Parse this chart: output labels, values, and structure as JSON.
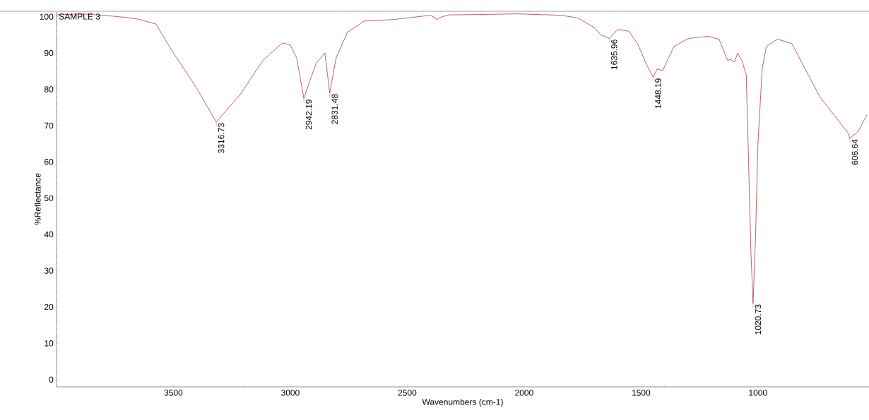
{
  "chart_data": {
    "type": "line",
    "title": "SAMPLE 3",
    "xlabel": "Wavenumbers (cm-1)",
    "ylabel": "%Reflectance",
    "xlim": [
      4000,
      525
    ],
    "ylim": [
      -2,
      101.5
    ],
    "xticks": [
      3500,
      3000,
      2500,
      2000,
      1500,
      1000
    ],
    "yticks": [
      0,
      10,
      20,
      30,
      40,
      50,
      60,
      70,
      80,
      90,
      100
    ],
    "grid": false,
    "marker": "none",
    "line_style": "solid",
    "series": [
      {
        "color": "#b03a3a",
        "x": [
          4000,
          3900,
          3800,
          3700,
          3648,
          3575,
          3503,
          3407,
          3316.73,
          3214,
          3117,
          3033,
          3000,
          2973,
          2942.19,
          2913,
          2889,
          2852,
          2831.48,
          2804,
          2756,
          2684,
          2563,
          2400,
          2370,
          2360,
          2322,
          2200,
          2033,
          1840,
          1768,
          1700,
          1672,
          1635.96,
          1600,
          1551,
          1515,
          1479,
          1448.19,
          1431,
          1407,
          1359,
          1298,
          1214,
          1166,
          1130,
          1117,
          1100,
          1087,
          1069,
          1050,
          1040,
          1030,
          1020.73,
          1010,
          1000,
          982,
          964,
          916,
          855,
          735,
          615,
          606.64,
          570,
          534
        ],
        "values": [
          100.5,
          100.8,
          100.4,
          99.8,
          99.3,
          98,
          90.3,
          81,
          71,
          78.6,
          88,
          92.8,
          92.2,
          88.7,
          77.5,
          83,
          87.2,
          90,
          79,
          88.7,
          95.7,
          98.8,
          99.2,
          100.4,
          99.2,
          99.8,
          100.5,
          100.6,
          100.8,
          100.4,
          99.6,
          97,
          95,
          94,
          96.5,
          96,
          92.6,
          87.2,
          83.3,
          85.6,
          85.2,
          91.8,
          94,
          94.6,
          93.8,
          88,
          88.2,
          87.5,
          90,
          88,
          84,
          60,
          35,
          21,
          40,
          65,
          85.6,
          91.8,
          93.8,
          92.6,
          77.9,
          68,
          66.5,
          68.5,
          73
        ]
      }
    ],
    "annotations": [
      {
        "text": "3316.73",
        "x": 3316.73,
        "y": 71
      },
      {
        "text": "2942.19",
        "x": 2942.19,
        "y": 77.5
      },
      {
        "text": "2831.48",
        "x": 2831.48,
        "y": 79
      },
      {
        "text": "1635.96",
        "x": 1635.96,
        "y": 94
      },
      {
        "text": "1448.19",
        "x": 1448.19,
        "y": 83.3
      },
      {
        "text": "1020.73",
        "x": 1020.73,
        "y": 21
      },
      {
        "text": "606.64",
        "x": 606.64,
        "y": 66.5
      }
    ]
  }
}
